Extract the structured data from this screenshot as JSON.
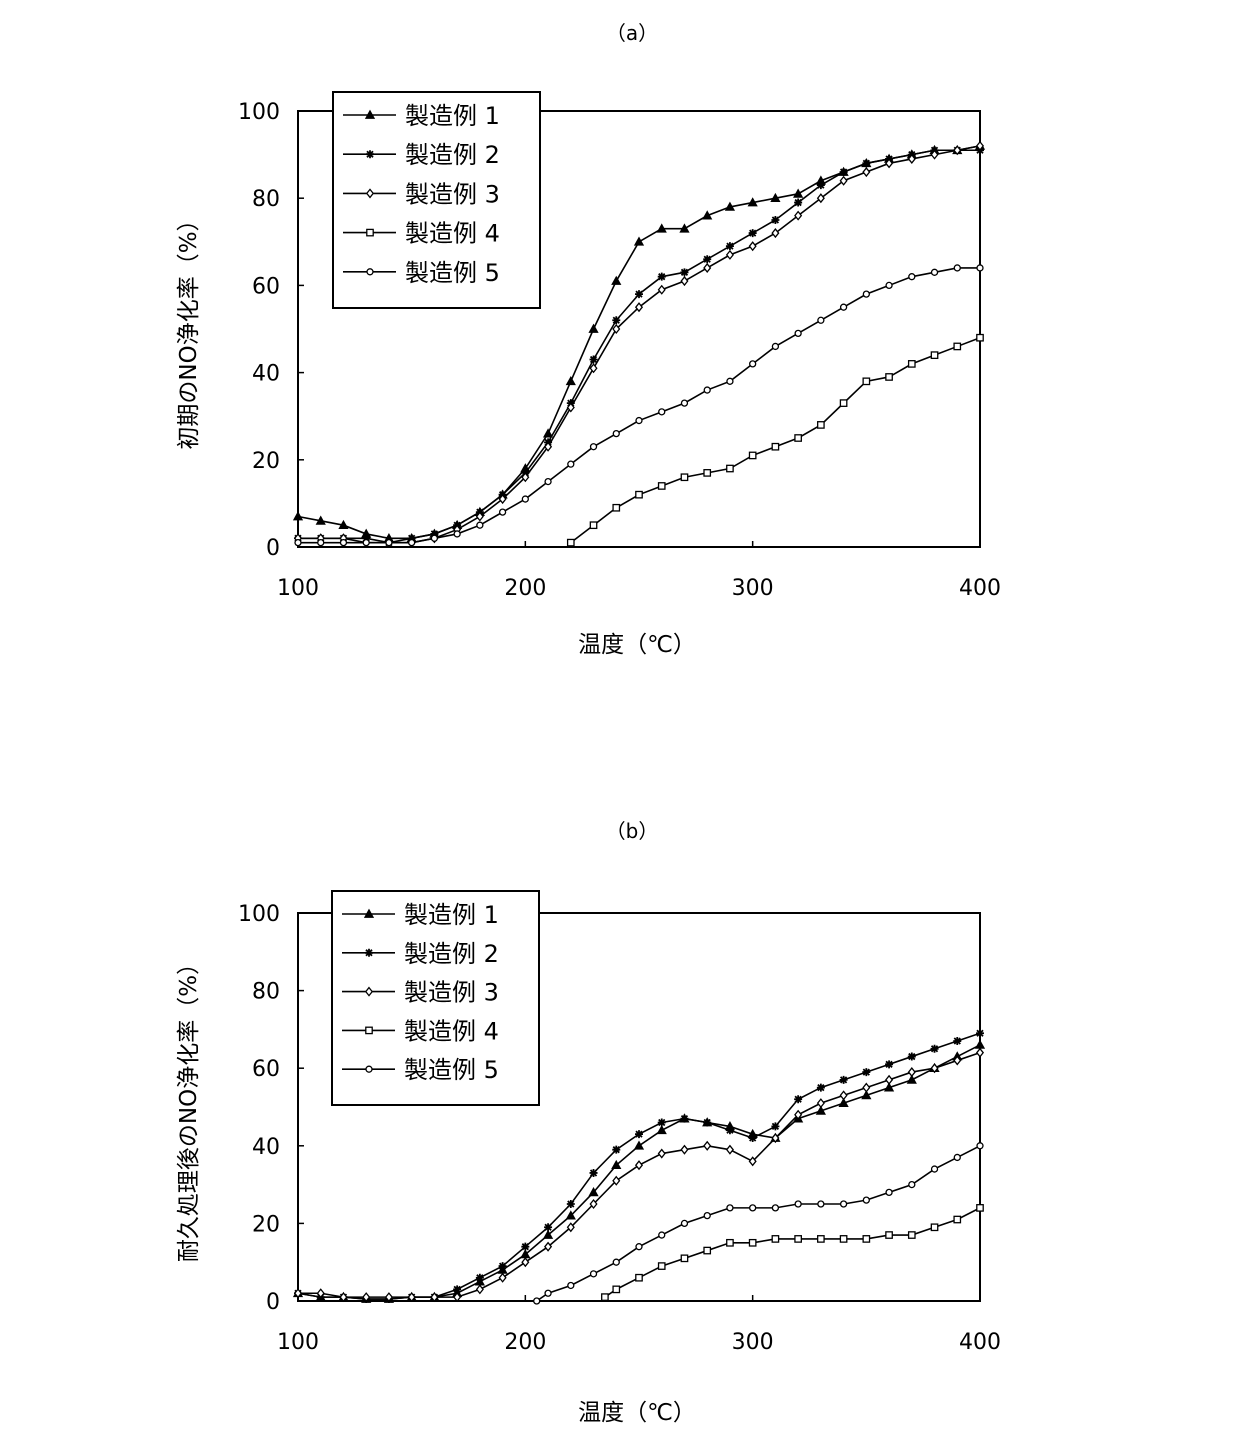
{
  "chart_data": [
    {
      "panel": "（a）",
      "type": "line",
      "title": "（a）",
      "xlabel": "温度（℃）",
      "ylabel": "初期のNO浄化率（%）",
      "xlim": [
        100,
        400
      ],
      "ylim": [
        0,
        100
      ],
      "xticks": [
        100,
        200,
        300,
        400
      ],
      "yticks": [
        0,
        20,
        40,
        60,
        80,
        100
      ],
      "grid": false,
      "legend_position": "top-left",
      "series": [
        {
          "name": "製造例 1",
          "marker": "triangle",
          "x": [
            100,
            110,
            120,
            130,
            140,
            150,
            160,
            170,
            180,
            190,
            200,
            210,
            220,
            230,
            240,
            250,
            260,
            270,
            280,
            290,
            300,
            310,
            320,
            330,
            340,
            350,
            360,
            370,
            380,
            390,
            400
          ],
          "y": [
            7,
            6,
            5,
            3,
            2,
            2,
            3,
            5,
            8,
            12,
            18,
            26,
            38,
            50,
            61,
            70,
            73,
            73,
            76,
            78,
            79,
            80,
            81,
            84,
            86,
            88,
            89,
            90,
            91,
            91,
            92
          ]
        },
        {
          "name": "製造例 2",
          "marker": "star",
          "x": [
            100,
            110,
            120,
            130,
            140,
            150,
            160,
            170,
            180,
            190,
            200,
            210,
            220,
            230,
            240,
            250,
            260,
            270,
            280,
            290,
            300,
            310,
            320,
            330,
            340,
            350,
            360,
            370,
            380,
            390,
            400
          ],
          "y": [
            2,
            2,
            2,
            2,
            1,
            2,
            3,
            5,
            8,
            12,
            17,
            24,
            33,
            43,
            52,
            58,
            62,
            63,
            66,
            69,
            72,
            75,
            79,
            83,
            86,
            88,
            89,
            90,
            91,
            91,
            91
          ]
        },
        {
          "name": "製造例 3",
          "marker": "diamond",
          "x": [
            100,
            110,
            120,
            130,
            140,
            150,
            160,
            170,
            180,
            190,
            200,
            210,
            220,
            230,
            240,
            250,
            260,
            270,
            280,
            290,
            300,
            310,
            320,
            330,
            340,
            350,
            360,
            370,
            380,
            390,
            400
          ],
          "y": [
            2,
            2,
            2,
            1,
            1,
            1,
            2,
            4,
            7,
            11,
            16,
            23,
            32,
            41,
            50,
            55,
            59,
            61,
            64,
            67,
            69,
            72,
            76,
            80,
            84,
            86,
            88,
            89,
            90,
            91,
            92
          ]
        },
        {
          "name": "製造例 4",
          "marker": "square",
          "x": [
            220,
            230,
            240,
            250,
            260,
            270,
            280,
            290,
            300,
            310,
            320,
            330,
            340,
            350,
            360,
            370,
            380,
            390,
            400
          ],
          "y": [
            1,
            5,
            9,
            12,
            14,
            16,
            17,
            18,
            21,
            23,
            25,
            28,
            33,
            38,
            39,
            42,
            44,
            46,
            48
          ]
        },
        {
          "name": "製造例 5",
          "marker": "circle",
          "x": [
            100,
            110,
            120,
            130,
            140,
            150,
            160,
            170,
            180,
            190,
            200,
            210,
            220,
            230,
            240,
            250,
            260,
            270,
            280,
            290,
            300,
            310,
            320,
            330,
            340,
            350,
            360,
            370,
            380,
            390,
            400
          ],
          "y": [
            1,
            1,
            1,
            1,
            1,
            1,
            2,
            3,
            5,
            8,
            11,
            15,
            19,
            23,
            26,
            29,
            31,
            33,
            36,
            38,
            42,
            46,
            49,
            52,
            55,
            58,
            60,
            62,
            63,
            64,
            64
          ]
        }
      ]
    },
    {
      "panel": "（b）",
      "type": "line",
      "title": "（b）",
      "xlabel": "温度（℃）",
      "ylabel": "耐久処理後のNO浄化率（%）",
      "xlim": [
        100,
        400
      ],
      "ylim": [
        0,
        100
      ],
      "xticks": [
        100,
        200,
        300,
        400
      ],
      "yticks": [
        0,
        20,
        40,
        60,
        80,
        100
      ],
      "grid": false,
      "legend_position": "top-left",
      "series": [
        {
          "name": "製造例 1",
          "marker": "triangle",
          "x": [
            100,
            110,
            120,
            130,
            140,
            150,
            160,
            170,
            180,
            190,
            200,
            210,
            220,
            230,
            240,
            250,
            260,
            270,
            280,
            290,
            300,
            310,
            320,
            330,
            340,
            350,
            360,
            370,
            380,
            390,
            400
          ],
          "y": [
            2,
            1,
            1,
            0.5,
            0.5,
            1,
            1,
            2,
            5,
            8,
            12,
            17,
            22,
            28,
            35,
            40,
            44,
            47,
            46,
            45,
            43,
            42,
            47,
            49,
            51,
            53,
            55,
            57,
            60,
            63,
            66
          ]
        },
        {
          "name": "製造例 2",
          "marker": "star",
          "x": [
            100,
            110,
            120,
            130,
            140,
            150,
            160,
            170,
            180,
            190,
            200,
            210,
            220,
            230,
            240,
            250,
            260,
            270,
            280,
            290,
            300,
            310,
            320,
            330,
            340,
            350,
            360,
            370,
            380,
            390,
            400
          ],
          "y": [
            2,
            1,
            1,
            0.5,
            0.5,
            1,
            1,
            3,
            6,
            9,
            14,
            19,
            25,
            33,
            39,
            43,
            46,
            47,
            46,
            44,
            42,
            45,
            52,
            55,
            57,
            59,
            61,
            63,
            65,
            67,
            69
          ]
        },
        {
          "name": "製造例 3",
          "marker": "diamond",
          "x": [
            100,
            110,
            120,
            130,
            140,
            150,
            160,
            170,
            180,
            190,
            200,
            210,
            220,
            230,
            240,
            250,
            260,
            270,
            280,
            290,
            300,
            310,
            320,
            330,
            340,
            350,
            360,
            370,
            380,
            390,
            400
          ],
          "y": [
            2,
            2,
            1,
            1,
            1,
            1,
            1,
            1,
            3,
            6,
            10,
            14,
            19,
            25,
            31,
            35,
            38,
            39,
            40,
            39,
            36,
            42,
            48,
            51,
            53,
            55,
            57,
            59,
            60,
            62,
            64
          ]
        },
        {
          "name": "製造例 4",
          "marker": "square",
          "x": [
            235,
            240,
            250,
            260,
            270,
            280,
            290,
            300,
            310,
            320,
            330,
            340,
            350,
            360,
            370,
            380,
            390,
            400
          ],
          "y": [
            1,
            3,
            6,
            9,
            11,
            13,
            15,
            15,
            16,
            16,
            16,
            16,
            16,
            17,
            17,
            19,
            21,
            24
          ]
        },
        {
          "name": "製造例 5",
          "marker": "circle",
          "x": [
            205,
            210,
            220,
            230,
            240,
            250,
            260,
            270,
            280,
            290,
            300,
            310,
            320,
            330,
            340,
            350,
            360,
            370,
            380,
            390,
            400
          ],
          "y": [
            0,
            2,
            4,
            7,
            10,
            14,
            17,
            20,
            22,
            24,
            24,
            24,
            25,
            25,
            25,
            26,
            28,
            30,
            34,
            37,
            40
          ]
        }
      ]
    }
  ]
}
